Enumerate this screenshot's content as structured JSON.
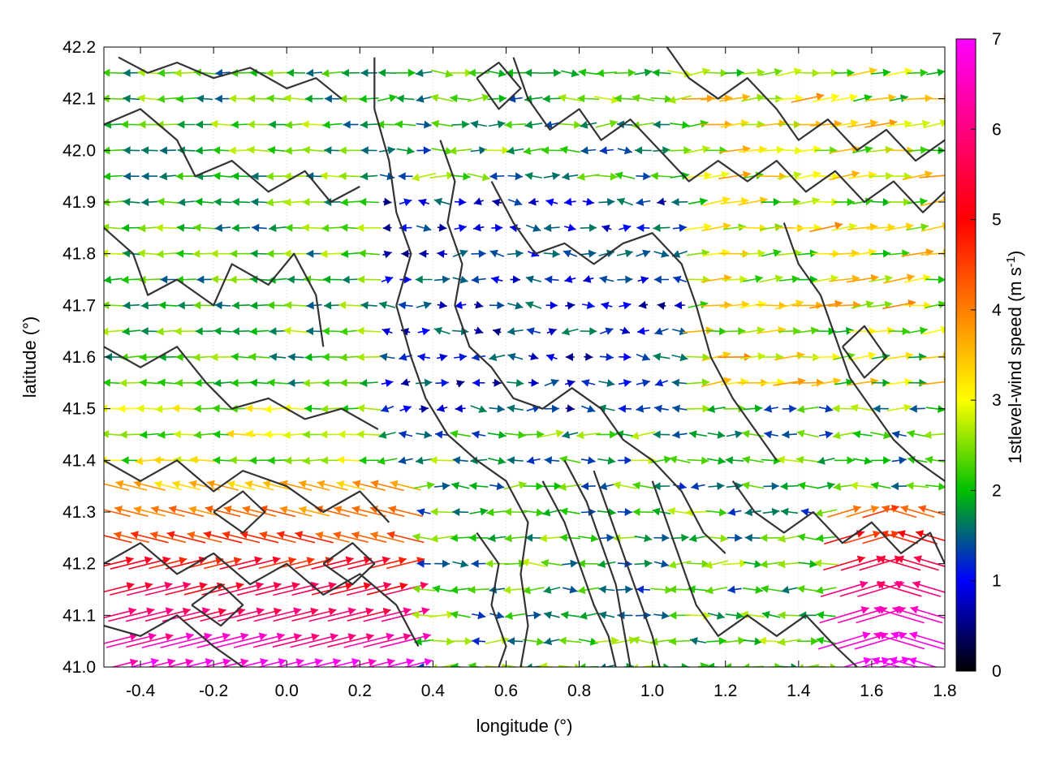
{
  "chart_data": {
    "type": "vector-field",
    "xlabel": "longitude (°)",
    "ylabel": "latitude (°)",
    "xlim": [
      -0.5,
      1.8
    ],
    "ylim": [
      41.0,
      42.2
    ],
    "x_ticks": [
      "-0.4",
      "-0.2",
      "0.0",
      "0.2",
      "0.4",
      "0.6",
      "0.8",
      "1.0",
      "1.2",
      "1.4",
      "1.6",
      "1.8"
    ],
    "y_ticks": [
      "41.0",
      "41.1",
      "41.2",
      "41.3",
      "41.4",
      "41.5",
      "41.6",
      "41.7",
      "41.8",
      "41.9",
      "42.0",
      "42.1",
      "42.2"
    ],
    "grid": true,
    "colorbar": {
      "label_main": "1stlevel-wind speed (m s",
      "label_sup": "-1",
      "label_end": ")",
      "range": [
        0,
        7
      ],
      "ticks": [
        "0",
        "1",
        "2",
        "3",
        "4",
        "5",
        "6",
        "7"
      ],
      "colors": [
        "#000000",
        "#0000ff",
        "#00c000",
        "#ffff00",
        "#ff8000",
        "#ff0000",
        "#ff00ff"
      ]
    },
    "contours": [
      [
        [
          -0.46,
          42.18
        ],
        [
          -0.38,
          42.15
        ],
        [
          -0.3,
          42.17
        ],
        [
          -0.2,
          42.14
        ],
        [
          -0.1,
          42.16
        ],
        [
          0.0,
          42.12
        ],
        [
          0.08,
          42.14
        ],
        [
          0.15,
          42.1
        ]
      ],
      [
        [
          -0.5,
          42.05
        ],
        [
          -0.4,
          42.08
        ],
        [
          -0.3,
          42.02
        ],
        [
          -0.25,
          41.95
        ],
        [
          -0.15,
          41.98
        ],
        [
          -0.05,
          41.92
        ],
        [
          0.05,
          41.96
        ],
        [
          0.12,
          41.9
        ],
        [
          0.2,
          41.93
        ]
      ],
      [
        [
          -0.5,
          41.85
        ],
        [
          -0.42,
          41.8
        ],
        [
          -0.38,
          41.72
        ],
        [
          -0.3,
          41.75
        ],
        [
          -0.2,
          41.7
        ],
        [
          -0.15,
          41.78
        ],
        [
          -0.05,
          41.74
        ],
        [
          0.02,
          41.8
        ],
        [
          0.08,
          41.72
        ],
        [
          0.1,
          41.62
        ]
      ],
      [
        [
          -0.5,
          41.62
        ],
        [
          -0.4,
          41.58
        ],
        [
          -0.3,
          41.62
        ],
        [
          -0.22,
          41.55
        ],
        [
          -0.15,
          41.5
        ],
        [
          -0.05,
          41.52
        ],
        [
          0.05,
          41.48
        ],
        [
          0.15,
          41.5
        ],
        [
          0.25,
          41.46
        ]
      ],
      [
        [
          -0.5,
          41.4
        ],
        [
          -0.4,
          41.36
        ],
        [
          -0.3,
          41.4
        ],
        [
          -0.2,
          41.34
        ],
        [
          -0.12,
          41.38
        ],
        [
          0.0,
          41.35
        ],
        [
          0.1,
          41.3
        ],
        [
          0.2,
          41.34
        ],
        [
          0.28,
          41.28
        ]
      ],
      [
        [
          -0.5,
          41.2
        ],
        [
          -0.4,
          41.24
        ],
        [
          -0.3,
          41.18
        ],
        [
          -0.2,
          41.22
        ],
        [
          -0.1,
          41.16
        ],
        [
          0.0,
          41.2
        ],
        [
          0.1,
          41.14
        ],
        [
          0.2,
          41.18
        ],
        [
          0.3,
          41.12
        ],
        [
          0.36,
          41.04
        ]
      ],
      [
        [
          -0.5,
          41.08
        ],
        [
          -0.4,
          41.06
        ],
        [
          -0.3,
          41.1
        ],
        [
          -0.2,
          41.04
        ],
        [
          -0.12,
          41.0
        ]
      ],
      [
        [
          0.24,
          42.18
        ],
        [
          0.24,
          42.08
        ],
        [
          0.28,
          41.98
        ],
        [
          0.3,
          41.88
        ],
        [
          0.34,
          41.8
        ],
        [
          0.3,
          41.7
        ],
        [
          0.34,
          41.6
        ],
        [
          0.38,
          41.52
        ],
        [
          0.44,
          41.45
        ],
        [
          0.52,
          41.4
        ],
        [
          0.6,
          41.36
        ],
        [
          0.66,
          41.28
        ],
        [
          0.64,
          41.18
        ],
        [
          0.66,
          41.08
        ],
        [
          0.64,
          41.0
        ]
      ],
      [
        [
          0.42,
          42.02
        ],
        [
          0.46,
          41.94
        ],
        [
          0.44,
          41.86
        ],
        [
          0.48,
          41.78
        ],
        [
          0.46,
          41.7
        ],
        [
          0.5,
          41.62
        ],
        [
          0.56,
          41.58
        ],
        [
          0.62,
          41.52
        ],
        [
          0.7,
          41.5
        ],
        [
          0.78,
          41.54
        ],
        [
          0.86,
          41.5
        ],
        [
          0.92,
          41.44
        ],
        [
          1.0,
          41.4
        ],
        [
          1.08,
          41.34
        ],
        [
          1.14,
          41.26
        ],
        [
          1.2,
          41.22
        ]
      ],
      [
        [
          0.56,
          41.94
        ],
        [
          0.62,
          41.86
        ],
        [
          0.68,
          41.8
        ],
        [
          0.76,
          41.82
        ],
        [
          0.84,
          41.78
        ],
        [
          0.92,
          41.82
        ],
        [
          1.0,
          41.84
        ],
        [
          1.08,
          41.78
        ],
        [
          1.12,
          41.7
        ],
        [
          1.16,
          41.6
        ],
        [
          1.22,
          41.52
        ],
        [
          1.28,
          41.46
        ],
        [
          1.34,
          41.4
        ]
      ],
      [
        [
          0.62,
          42.18
        ],
        [
          0.66,
          42.1
        ],
        [
          0.72,
          42.04
        ],
        [
          0.8,
          42.08
        ],
        [
          0.86,
          42.02
        ],
        [
          0.94,
          42.06
        ],
        [
          1.02,
          42.0
        ],
        [
          1.1,
          41.94
        ],
        [
          1.18,
          41.98
        ],
        [
          1.26,
          41.94
        ],
        [
          1.34,
          41.98
        ],
        [
          1.42,
          41.92
        ],
        [
          1.5,
          41.96
        ],
        [
          1.58,
          41.9
        ],
        [
          1.66,
          41.94
        ],
        [
          1.74,
          41.88
        ],
        [
          1.8,
          41.92
        ]
      ],
      [
        [
          1.04,
          42.2
        ],
        [
          1.1,
          42.14
        ],
        [
          1.18,
          42.1
        ],
        [
          1.26,
          42.14
        ],
        [
          1.34,
          42.08
        ],
        [
          1.4,
          42.02
        ],
        [
          1.48,
          42.06
        ],
        [
          1.56,
          42.0
        ],
        [
          1.64,
          42.04
        ],
        [
          1.72,
          41.98
        ],
        [
          1.8,
          42.02
        ]
      ],
      [
        [
          1.36,
          41.86
        ],
        [
          1.4,
          41.78
        ],
        [
          1.46,
          41.72
        ],
        [
          1.5,
          41.64
        ],
        [
          1.54,
          41.56
        ],
        [
          1.6,
          41.5
        ],
        [
          1.66,
          41.44
        ],
        [
          1.72,
          41.4
        ],
        [
          1.8,
          41.36
        ]
      ],
      [
        [
          0.7,
          41.36
        ],
        [
          0.76,
          41.28
        ],
        [
          0.8,
          41.2
        ],
        [
          0.84,
          41.12
        ],
        [
          0.88,
          41.06
        ],
        [
          0.9,
          41.0
        ]
      ],
      [
        [
          0.76,
          41.4
        ],
        [
          0.82,
          41.32
        ],
        [
          0.86,
          41.24
        ],
        [
          0.9,
          41.16
        ],
        [
          0.92,
          41.08
        ],
        [
          0.94,
          41.0
        ]
      ],
      [
        [
          0.84,
          41.38
        ],
        [
          0.88,
          41.3
        ],
        [
          0.92,
          41.22
        ],
        [
          0.96,
          41.14
        ],
        [
          1.0,
          41.06
        ],
        [
          1.02,
          41.0
        ]
      ],
      [
        [
          1.0,
          41.36
        ],
        [
          1.04,
          41.28
        ],
        [
          1.08,
          41.2
        ],
        [
          1.12,
          41.12
        ],
        [
          1.18,
          41.06
        ],
        [
          1.26,
          41.1
        ],
        [
          1.34,
          41.06
        ],
        [
          1.42,
          41.1
        ],
        [
          1.5,
          41.04
        ],
        [
          1.56,
          41.0
        ]
      ],
      [
        [
          1.22,
          41.36
        ],
        [
          1.28,
          41.3
        ],
        [
          1.36,
          41.26
        ],
        [
          1.44,
          41.3
        ],
        [
          1.52,
          41.24
        ],
        [
          1.6,
          41.28
        ],
        [
          1.68,
          41.22
        ],
        [
          1.76,
          41.26
        ],
        [
          1.8,
          41.2
        ]
      ],
      [
        [
          0.52,
          41.26
        ],
        [
          0.58,
          41.2
        ],
        [
          0.56,
          41.12
        ],
        [
          0.6,
          41.04
        ],
        [
          0.58,
          41.0
        ]
      ],
      [
        [
          -0.2,
          41.3
        ],
        [
          -0.12,
          41.26
        ],
        [
          -0.06,
          41.3
        ],
        [
          -0.12,
          41.34
        ],
        [
          -0.2,
          41.3
        ]
      ],
      [
        [
          0.1,
          41.2
        ],
        [
          0.18,
          41.16
        ],
        [
          0.24,
          41.2
        ],
        [
          0.18,
          41.24
        ],
        [
          0.1,
          41.2
        ]
      ],
      [
        [
          -0.26,
          41.12
        ],
        [
          -0.18,
          41.08
        ],
        [
          -0.12,
          41.12
        ],
        [
          -0.18,
          41.16
        ],
        [
          -0.26,
          41.12
        ]
      ],
      [
        [
          1.52,
          41.62
        ],
        [
          1.58,
          41.56
        ],
        [
          1.64,
          41.6
        ],
        [
          1.58,
          41.66
        ],
        [
          1.52,
          41.62
        ]
      ],
      [
        [
          0.52,
          42.14
        ],
        [
          0.58,
          42.08
        ],
        [
          0.64,
          42.12
        ],
        [
          0.58,
          42.17
        ],
        [
          0.52,
          42.14
        ]
      ]
    ],
    "wind_field": {
      "grid_spacing_deg": [
        0.05,
        0.05
      ],
      "x_start": -0.475,
      "x_end": 1.775,
      "y_start": 41.0,
      "y_end": 42.15,
      "description": "wind vectors colored by speed; westerly/easterly flow with strongest winds in the south-west and south-east corners"
    }
  }
}
